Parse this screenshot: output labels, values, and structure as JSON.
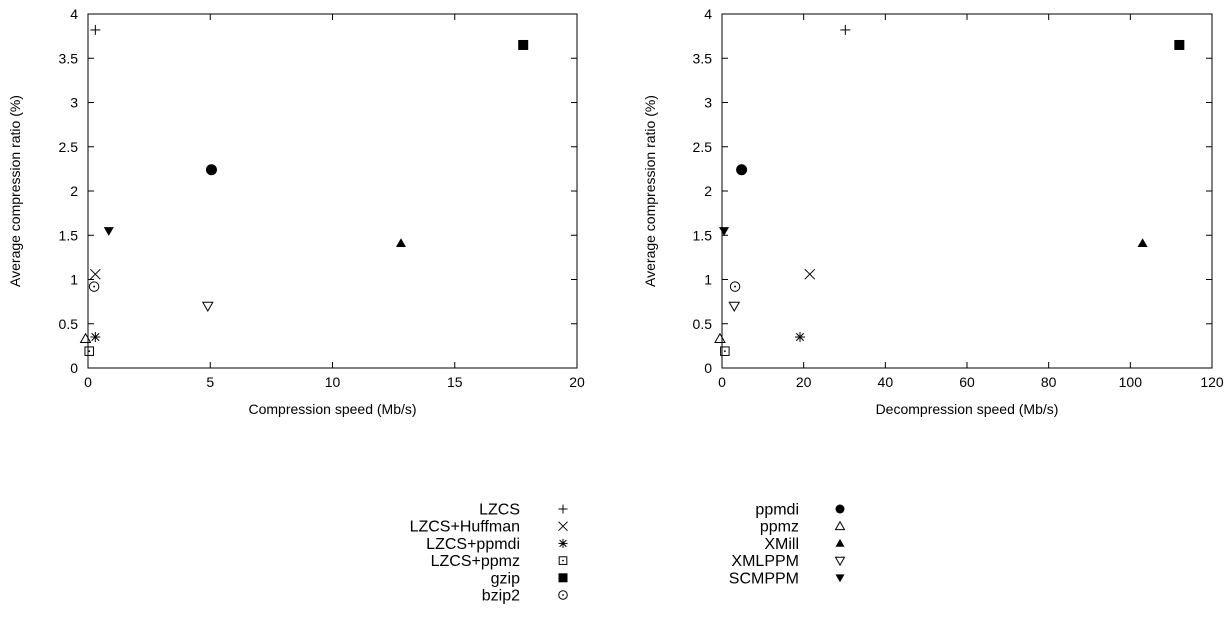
{
  "chart_data": [
    {
      "type": "scatter",
      "xlabel": "Compression speed (Mb/s)",
      "ylabel": "Average compression ratio (%)",
      "xlim": [
        0,
        20
      ],
      "ylim": [
        0,
        4
      ],
      "xticks": [
        0,
        5,
        10,
        15,
        20
      ],
      "yticks": [
        0,
        0.5,
        1,
        1.5,
        2,
        2.5,
        3,
        3.5,
        4
      ],
      "grid": false,
      "series": [
        {
          "name": "LZCS",
          "marker": "plus",
          "points": [
            [
              0.3,
              3.82
            ]
          ]
        },
        {
          "name": "LZCS+Huffman",
          "marker": "cross",
          "points": [
            [
              0.3,
              1.06
            ]
          ]
        },
        {
          "name": "LZCS+ppmdi",
          "marker": "star",
          "points": [
            [
              0.3,
              0.35
            ]
          ]
        },
        {
          "name": "LZCS+ppmz",
          "marker": "square-open-dot",
          "points": [
            [
              0.05,
              0.19
            ]
          ]
        },
        {
          "name": "gzip",
          "marker": "square-filled",
          "points": [
            [
              17.8,
              3.65
            ]
          ]
        },
        {
          "name": "bzip2",
          "marker": "circle-open-dot",
          "points": [
            [
              0.25,
              0.92
            ]
          ]
        },
        {
          "name": "ppmdi",
          "marker": "circle-filled",
          "points": [
            [
              5.05,
              2.24
            ]
          ]
        },
        {
          "name": "ppmz",
          "marker": "triangle-up-open",
          "points": [
            [
              -0.1,
              0.33
            ]
          ]
        },
        {
          "name": "XMill",
          "marker": "triangle-up-filled",
          "points": [
            [
              12.8,
              1.41
            ]
          ]
        },
        {
          "name": "XMLPPM",
          "marker": "triangle-down-open",
          "points": [
            [
              4.9,
              0.7
            ]
          ]
        },
        {
          "name": "SCMPPM",
          "marker": "triangle-down-filled",
          "points": [
            [
              0.85,
              1.55
            ]
          ]
        }
      ]
    },
    {
      "type": "scatter",
      "xlabel": "Decompression speed (Mb/s)",
      "ylabel": "Average compression ratio (%)",
      "xlim": [
        0,
        120
      ],
      "ylim": [
        0,
        4
      ],
      "xticks": [
        0,
        20,
        40,
        60,
        80,
        100,
        120
      ],
      "yticks": [
        0,
        0.5,
        1,
        1.5,
        2,
        2.5,
        3,
        3.5,
        4
      ],
      "grid": false,
      "series": [
        {
          "name": "LZCS",
          "marker": "plus",
          "points": [
            [
              30.2,
              3.82
            ]
          ]
        },
        {
          "name": "LZCS+Huffman",
          "marker": "cross",
          "points": [
            [
              21.5,
              1.06
            ]
          ]
        },
        {
          "name": "LZCS+ppmdi",
          "marker": "star",
          "points": [
            [
              19.1,
              0.35
            ]
          ]
        },
        {
          "name": "LZCS+ppmz",
          "marker": "square-open-dot",
          "points": [
            [
              0.7,
              0.19
            ]
          ]
        },
        {
          "name": "gzip",
          "marker": "square-filled",
          "points": [
            [
              112,
              3.65
            ]
          ]
        },
        {
          "name": "bzip2",
          "marker": "circle-open-dot",
          "points": [
            [
              3.2,
              0.92
            ]
          ]
        },
        {
          "name": "ppmdi",
          "marker": "circle-filled",
          "points": [
            [
              4.8,
              2.24
            ]
          ]
        },
        {
          "name": "ppmz",
          "marker": "triangle-up-open",
          "points": [
            [
              -0.5,
              0.33
            ]
          ]
        },
        {
          "name": "XMill",
          "marker": "triangle-up-filled",
          "points": [
            [
              103,
              1.41
            ]
          ]
        },
        {
          "name": "XMLPPM",
          "marker": "triangle-down-open",
          "points": [
            [
              3,
              0.7
            ]
          ]
        },
        {
          "name": "SCMPPM",
          "marker": "triangle-down-filled",
          "points": [
            [
              0.5,
              1.55
            ]
          ]
        }
      ]
    }
  ],
  "legend": {
    "placement": "bottom-center",
    "columns": [
      [
        "LZCS",
        "LZCS+Huffman",
        "LZCS+ppmdi",
        "LZCS+ppmz",
        "gzip",
        "bzip2"
      ],
      [
        "ppmdi",
        "ppmz",
        "XMill",
        "XMLPPM",
        "SCMPPM"
      ]
    ]
  }
}
